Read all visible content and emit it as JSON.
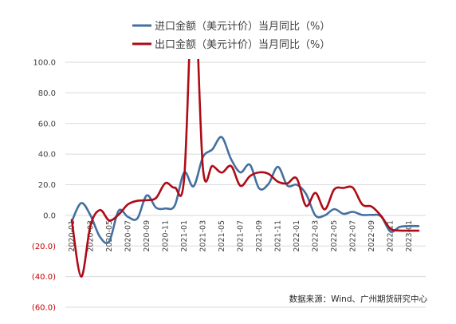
{
  "chart_data": {
    "type": "line",
    "title": "",
    "xlabel": "",
    "ylabel": "",
    "ylim": [
      -60,
      100
    ],
    "yticks": [
      "100.0",
      "80.0",
      "60.0",
      "40.0",
      "20.0",
      "0.0",
      "(20.0)",
      "(40.0)",
      "(60.0)"
    ],
    "ytick_values": [
      100,
      80,
      60,
      40,
      20,
      0,
      -20,
      -40,
      -60
    ],
    "negative_tick_color": "#C00000",
    "positive_tick_color": "#404040",
    "grid": "horizontal",
    "legend_position": "top",
    "x": [
      "2020-01",
      "2020-02",
      "2020-03",
      "2020-04",
      "2020-05",
      "2020-06",
      "2020-07",
      "2020-08",
      "2020-09",
      "2020-10",
      "2020-11",
      "2020-12",
      "2021-01",
      "2021-02",
      "2021-03",
      "2021-04",
      "2021-05",
      "2021-06",
      "2021-07",
      "2021-08",
      "2021-09",
      "2021-10",
      "2021-11",
      "2021-12",
      "2022-01",
      "2022-02",
      "2022-03",
      "2022-04",
      "2022-05",
      "2022-06",
      "2022-07",
      "2022-08",
      "2022-09",
      "2022-10",
      "2022-11",
      "2022-12",
      "2023-01",
      "2023-02"
    ],
    "xticks": [
      "2020-01",
      "2020-03",
      "2020-05",
      "2020-07",
      "2020-09",
      "2020-11",
      "2021-01",
      "2021-03",
      "2021-05",
      "2021-07",
      "2021-09",
      "2021-11",
      "2022-01",
      "2022-03",
      "2022-05",
      "2022-07",
      "2022-09",
      "2022-11",
      "2023-01"
    ],
    "xtick_labels": [
      "2020-01",
      "2020-03",
      "2020-05",
      "2020-07",
      "2020-09",
      "2020-11",
      "2021-01",
      "2021-03",
      "2021-05",
      "2021-07",
      "2021-09",
      "2021-11",
      "2022-01",
      "2022-03",
      "2022-05",
      "2022-07",
      "2022-09",
      "2022-11",
      "2023-01"
    ],
    "series": [
      {
        "name": "进口金额（美元计价）当月同比（%）",
        "color": "#44709F",
        "values": [
          -4,
          8,
          0,
          -14,
          -17,
          3,
          -1,
          -2,
          13,
          5,
          4.5,
          6.5,
          28,
          19,
          38.1,
          43.1,
          51.1,
          36.7,
          28.1,
          33.1,
          17.6,
          20.6,
          31.7,
          19.5,
          20,
          14,
          -0.1,
          0,
          4.1,
          1,
          2.3,
          0.3,
          0.3,
          -0.7,
          -10.6,
          -7.5,
          -7,
          -7
        ]
      },
      {
        "name": "出口金额（美元计价）当月同比（%）",
        "color": "#AE0B16",
        "values": [
          -3,
          -40,
          -6.6,
          3.5,
          -3.3,
          0.5,
          7.2,
          9.5,
          9.9,
          11.4,
          21.1,
          18.1,
          24.7,
          155,
          30.6,
          32.3,
          27.9,
          32.2,
          19.3,
          25.6,
          28.1,
          27.1,
          22,
          20.9,
          24.1,
          6.2,
          14.7,
          3.9,
          16.9,
          17.9,
          18,
          7.1,
          5.7,
          -0.3,
          -8.7,
          -9.9,
          -10,
          -10
        ]
      }
    ],
    "annotation": "数据来源：Wind、广州期货研究中心"
  }
}
